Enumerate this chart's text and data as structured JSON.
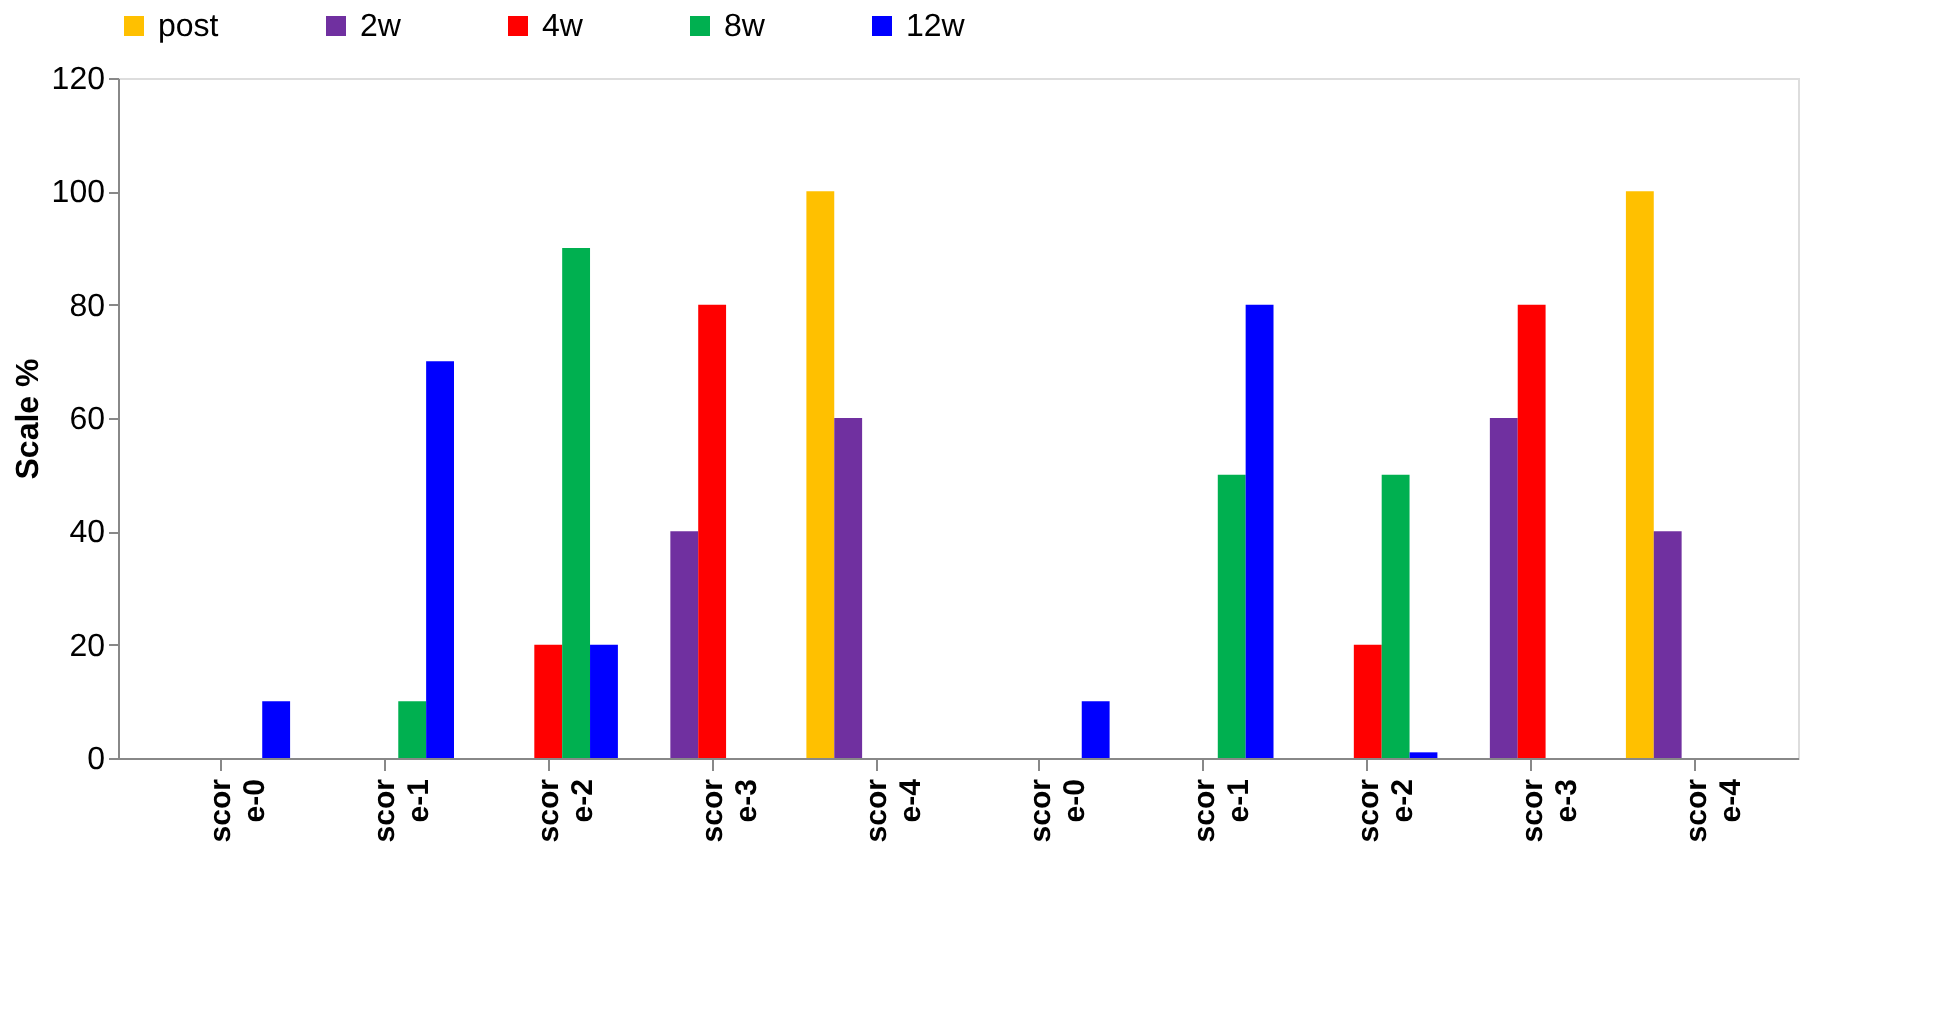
{
  "chart_data": {
    "type": "bar",
    "ylabel": "Scale %",
    "categories": [
      "score-0",
      "score-1",
      "score-2",
      "score-3",
      "score-4",
      "score-0",
      "score-1",
      "score-2",
      "score-3",
      "score-4"
    ],
    "series": [
      {
        "name": "post",
        "color": "#ffc000",
        "values": [
          0,
          0,
          0,
          0,
          100,
          0,
          0,
          0,
          0,
          100
        ]
      },
      {
        "name": "2w",
        "color": "#7030a0",
        "values": [
          0,
          0,
          0,
          40,
          60,
          0,
          0,
          0,
          60,
          40
        ]
      },
      {
        "name": "4w",
        "color": "#ff0000",
        "values": [
          0,
          0,
          20,
          80,
          0,
          0,
          0,
          20,
          80,
          0
        ]
      },
      {
        "name": "8w",
        "color": "#00b050",
        "values": [
          0,
          10,
          90,
          0,
          0,
          0,
          50,
          50,
          0,
          0
        ]
      },
      {
        "name": "12w",
        "color": "#0000ff",
        "values": [
          10,
          70,
          20,
          0,
          0,
          10,
          80,
          1,
          0,
          0
        ]
      }
    ],
    "ylim": [
      0,
      120
    ],
    "yticks": [
      0,
      20,
      40,
      60,
      80,
      100,
      120
    ],
    "grid": false,
    "legend": "top"
  }
}
